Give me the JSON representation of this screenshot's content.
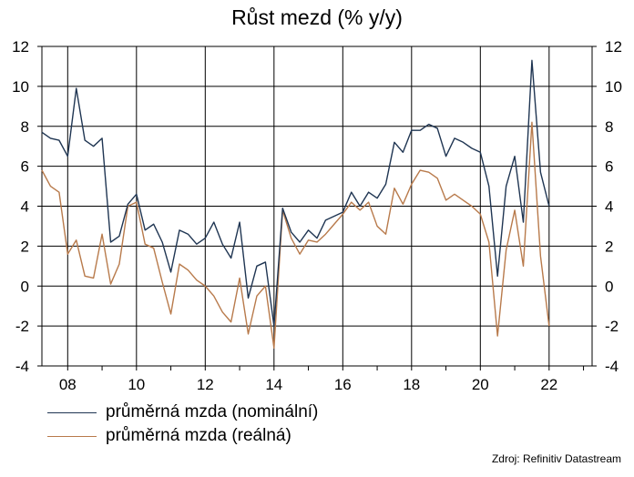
{
  "chart_data": {
    "type": "line",
    "title": "Růst mezd (% y/y)",
    "xlabel": "",
    "ylabel": "",
    "xlim": [
      2007.25,
      2023.25
    ],
    "ylim": [
      -4,
      12
    ],
    "yticks": [
      -4,
      -2,
      0,
      2,
      4,
      6,
      8,
      10,
      12
    ],
    "xticks": [
      {
        "value": 2008,
        "label": "08"
      },
      {
        "value": 2010,
        "label": "10"
      },
      {
        "value": 2012,
        "label": "12"
      },
      {
        "value": 2014,
        "label": "14"
      },
      {
        "value": 2016,
        "label": "16"
      },
      {
        "value": 2018,
        "label": "18"
      },
      {
        "value": 2020,
        "label": "20"
      },
      {
        "value": 2022,
        "label": "22"
      }
    ],
    "grid": true,
    "secondary_y_axis": true,
    "legend_position": "bottom-left",
    "series": [
      {
        "name": "průměrná mzda (nominální)",
        "color": "#1f3552",
        "x": [
          2007.25,
          2007.5,
          2007.75,
          2008.0,
          2008.25,
          2008.5,
          2008.75,
          2009.0,
          2009.25,
          2009.5,
          2009.75,
          2010.0,
          2010.25,
          2010.5,
          2010.75,
          2011.0,
          2011.25,
          2011.5,
          2011.75,
          2012.0,
          2012.25,
          2012.5,
          2012.75,
          2013.0,
          2013.25,
          2013.5,
          2013.75,
          2014.0,
          2014.25,
          2014.5,
          2014.75,
          2015.0,
          2015.25,
          2015.5,
          2015.75,
          2016.0,
          2016.25,
          2016.5,
          2016.75,
          2017.0,
          2017.25,
          2017.5,
          2017.75,
          2018.0,
          2018.25,
          2018.5,
          2018.75,
          2019.0,
          2019.25,
          2019.5,
          2019.75,
          2020.0,
          2020.25,
          2020.5,
          2020.75,
          2021.0,
          2021.25,
          2021.5,
          2021.75,
          2022.0
        ],
        "values": [
          7.7,
          7.4,
          7.3,
          6.5,
          9.9,
          7.3,
          7.0,
          7.4,
          2.2,
          2.5,
          4.1,
          4.6,
          2.8,
          3.1,
          2.2,
          0.7,
          2.8,
          2.6,
          2.1,
          2.4,
          3.2,
          2.1,
          1.4,
          3.2,
          -0.6,
          1.0,
          1.2,
          -2.0,
          3.9,
          2.7,
          2.2,
          2.8,
          2.4,
          3.3,
          3.5,
          3.7,
          4.7,
          4.0,
          4.7,
          4.4,
          5.1,
          7.2,
          6.7,
          7.8,
          7.8,
          8.1,
          7.9,
          6.5,
          7.4,
          7.2,
          6.9,
          6.7,
          5.0,
          0.5,
          5.0,
          6.5,
          3.2,
          11.3,
          5.7,
          4.0
        ]
      },
      {
        "name": "průměrná mzda (reálná)",
        "color": "#b87a4b",
        "x": [
          2007.25,
          2007.5,
          2007.75,
          2008.0,
          2008.25,
          2008.5,
          2008.75,
          2009.0,
          2009.25,
          2009.5,
          2009.75,
          2010.0,
          2010.25,
          2010.5,
          2010.75,
          2011.0,
          2011.25,
          2011.5,
          2011.75,
          2012.0,
          2012.25,
          2012.5,
          2012.75,
          2013.0,
          2013.25,
          2013.5,
          2013.75,
          2014.0,
          2014.25,
          2014.5,
          2014.75,
          2015.0,
          2015.25,
          2015.5,
          2015.75,
          2016.0,
          2016.25,
          2016.5,
          2016.75,
          2017.0,
          2017.25,
          2017.5,
          2017.75,
          2018.0,
          2018.25,
          2018.5,
          2018.75,
          2019.0,
          2019.25,
          2019.5,
          2019.75,
          2020.0,
          2020.25,
          2020.5,
          2020.75,
          2021.0,
          2021.25,
          2021.5,
          2021.75,
          2022.0
        ],
        "values": [
          5.8,
          5.0,
          4.7,
          1.6,
          2.3,
          0.5,
          0.4,
          2.6,
          0.1,
          1.1,
          4.0,
          4.2,
          2.1,
          1.9,
          0.2,
          -1.4,
          1.1,
          0.8,
          0.3,
          0.0,
          -0.5,
          -1.3,
          -1.8,
          0.4,
          -2.4,
          -0.5,
          0.0,
          -3.1,
          3.8,
          2.4,
          1.6,
          2.3,
          2.2,
          2.6,
          3.1,
          3.6,
          4.2,
          3.8,
          4.2,
          3.0,
          2.6,
          4.9,
          4.1,
          5.1,
          5.8,
          5.7,
          5.4,
          4.3,
          4.6,
          4.3,
          4.0,
          3.6,
          2.2,
          -2.5,
          1.8,
          3.8,
          1.0,
          8.2,
          1.5,
          -2.0
        ]
      }
    ],
    "source": "Zdroj: Refinitiv Datastream"
  }
}
